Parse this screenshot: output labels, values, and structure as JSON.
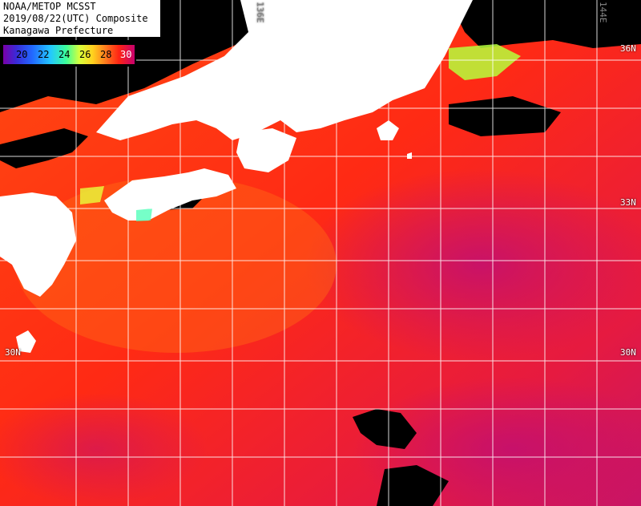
{
  "title": {
    "line1": "NOAA/METOP MCSST",
    "line2": "2019/08/22(UTC) Composite",
    "line3": "Kanagawa Prefecture"
  },
  "legend": {
    "ticks": [
      "20",
      "22",
      "24",
      "26",
      "28",
      "30"
    ],
    "palette": [
      "#7a00a8",
      "#2268ff",
      "#23c8ff",
      "#3cff9a",
      "#d8ff3c",
      "#ffd21e",
      "#ff7a1e",
      "#ff2414",
      "#c8006e"
    ]
  },
  "grid_labels": {
    "lon_136": "136E",
    "lon_144": "144E",
    "lat_36": "36N",
    "lat_33": "33N",
    "lat_30_left": "30N",
    "lat_30_right": "30N"
  },
  "colors": {
    "land": "#ffffff",
    "cloud": "#000000",
    "sea_warm": "#ff2a12",
    "sea_hot": "#d41a64",
    "grid": "#ffffff"
  }
}
